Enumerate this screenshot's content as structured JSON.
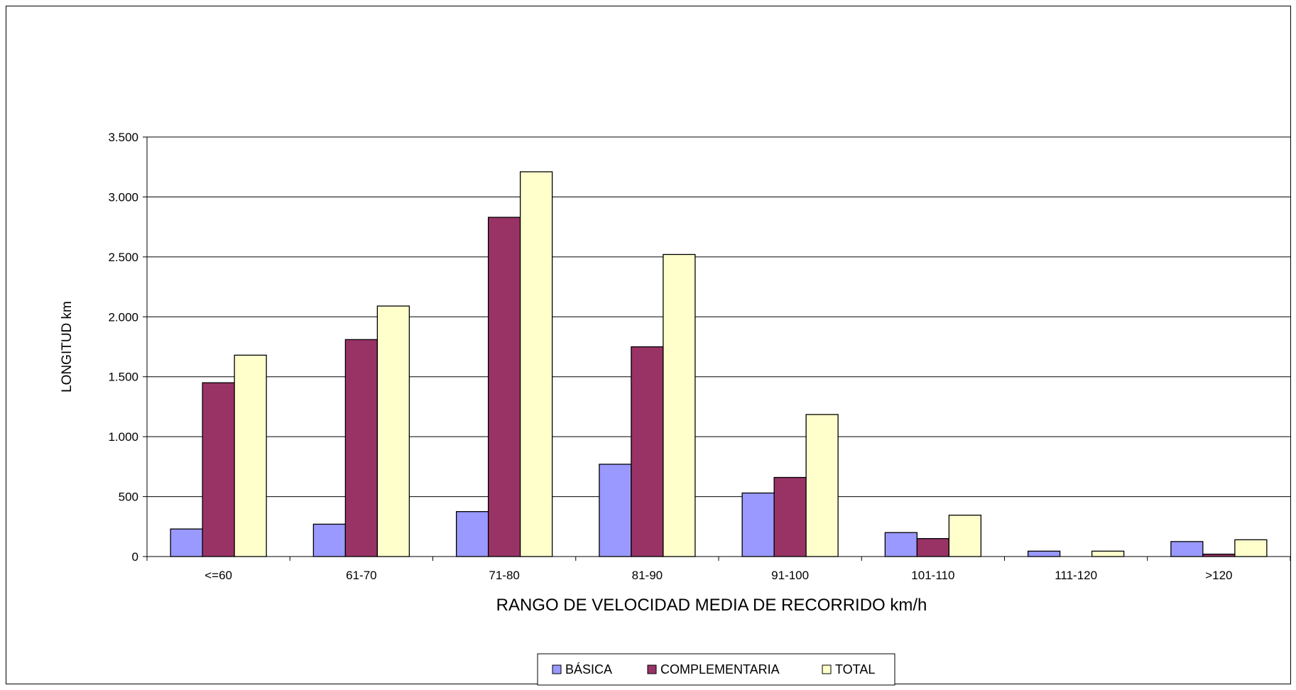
{
  "chart_data": {
    "type": "bar",
    "title": "",
    "xlabel": "RANGO DE VELOCIDAD MEDIA DE RECORRIDO km/h",
    "ylabel": "LONGITUD km",
    "ylim": [
      0,
      3500
    ],
    "yticks": [
      0,
      500,
      1000,
      1500,
      2000,
      2500,
      3000,
      3500
    ],
    "ytick_labels": [
      "0",
      "500",
      "1.000",
      "1.500",
      "2.000",
      "2.500",
      "3.000",
      "3.500"
    ],
    "grid": true,
    "legend_position": "bottom",
    "categories": [
      "<=60",
      "61-70",
      "71-80",
      "81-90",
      "91-100",
      "101-110",
      "111-120",
      ">120"
    ],
    "series": [
      {
        "name": "BÁSICA",
        "color": "#9999ff",
        "values": [
          230,
          270,
          375,
          770,
          530,
          200,
          45,
          125
        ]
      },
      {
        "name": "COMPLEMENTARIA",
        "color": "#993366",
        "values": [
          1450,
          1810,
          2830,
          1750,
          660,
          150,
          0,
          20
        ]
      },
      {
        "name": "TOTAL",
        "color": "#ffffcc",
        "values": [
          1680,
          2090,
          3210,
          2520,
          1185,
          345,
          45,
          140
        ]
      }
    ]
  }
}
